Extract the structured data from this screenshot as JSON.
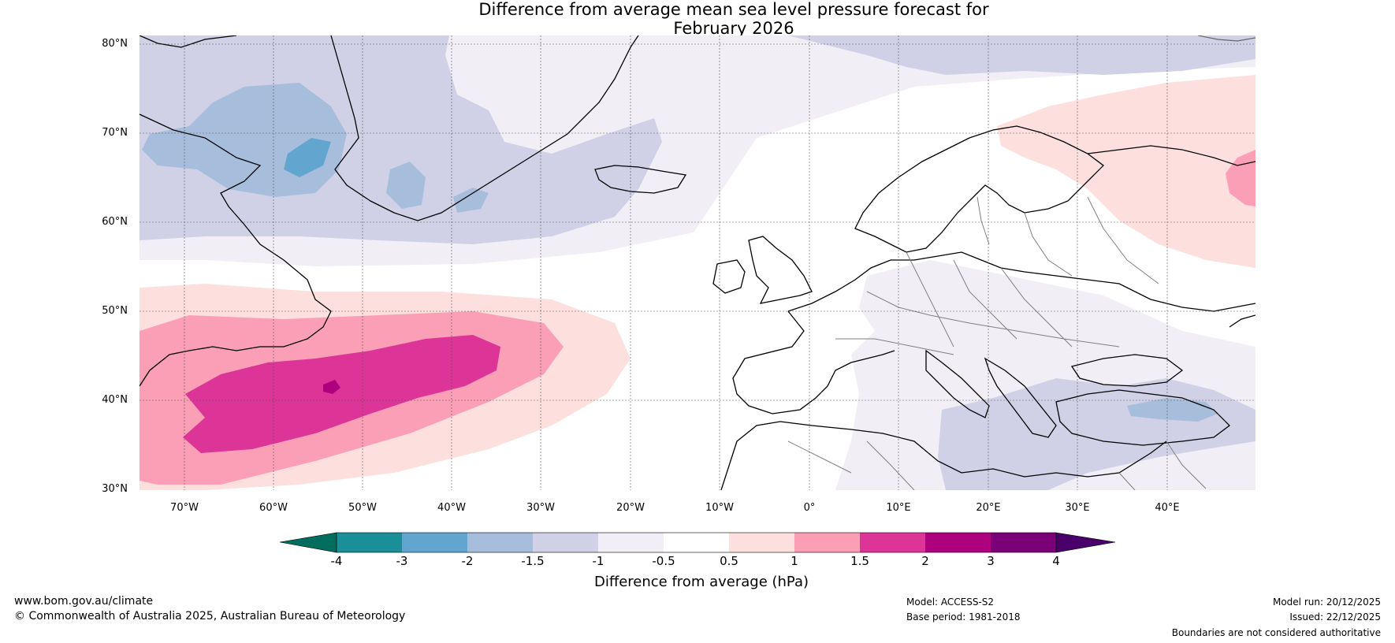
{
  "title": {
    "line1": "Difference from average mean sea level pressure forecast for",
    "line2": "February 2026"
  },
  "map": {
    "latitude_labels": [
      "80°N",
      "70°N",
      "60°N",
      "50°N",
      "40°N",
      "30°N"
    ],
    "longitude_labels": [
      "70°W",
      "60°W",
      "50°W",
      "40°W",
      "30°W",
      "20°W",
      "10°W",
      "0°",
      "10°E",
      "20°E",
      "30°E",
      "40°E"
    ],
    "colors": {
      "neg_4_3": "#1b8f97",
      "neg_3_2": "#62a6d0",
      "neg_2_15": "#a6bddb",
      "neg_15_1": "#d0d1e6",
      "neg_1_05": "#f1eef6",
      "neutral": "#ffffff",
      "pos_05_1": "#fde0dd",
      "pos_1_15": "#fa9fb5",
      "pos_15_2": "#dd3497",
      "pos_2_3": "#ae017e",
      "pos_3_4": "#7a0177",
      "below_neg4": "#006d5e",
      "above_4": "#49006a"
    }
  },
  "colorbar": {
    "labels": [
      "-4",
      "-3",
      "-2",
      "-1.5",
      "-1",
      "-0.5",
      "0.5",
      "1",
      "1.5",
      "2",
      "3",
      "4"
    ],
    "title": "Difference from average (hPa)"
  },
  "footer": {
    "website": "www.bom.gov.au/climate",
    "copyright": "© Commonwealth of Australia 2025, Australian Bureau of Meteorology",
    "model": "Model: ACCESS-S2",
    "base_period": "Base period: 1981-2018",
    "model_run": "Model run: 20/12/2025",
    "issued": "Issued: 22/12/2025",
    "disclaimer": "Boundaries are not considered authoritative"
  }
}
